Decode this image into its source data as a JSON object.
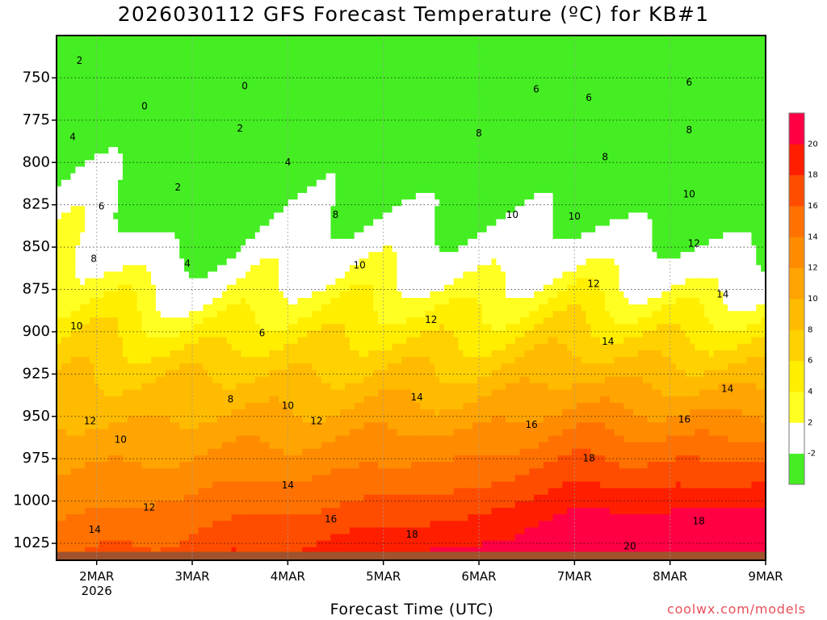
{
  "title": "2026030112 GFS Forecast Temperature (ºC) for KB#1",
  "credit": "coolwx.com/models",
  "colors": {
    "terrain": "#a0522d",
    "contour_line": "#000000",
    "zero_line": "#c0186c"
  },
  "chart_data": {
    "type": "heatmap",
    "title": "2026030112 GFS Forecast Temperature (ºC) for KB#1",
    "xlabel": "Forecast Time (UTC)",
    "ylabel": "",
    "x_units": "days since 2026-03-01 00Z",
    "xlim": [
      1.58,
      9.0
    ],
    "ylim": [
      1035,
      725
    ],
    "y_ticks": [
      750,
      775,
      800,
      825,
      850,
      875,
      900,
      925,
      950,
      975,
      1000,
      1025
    ],
    "y_tick_labels": [
      "750",
      "775",
      "800",
      "825",
      "850",
      "875",
      "900",
      "925",
      "950",
      "975",
      "1000",
      "1025"
    ],
    "x_ticks": [
      2,
      3,
      4,
      5,
      6,
      7,
      8,
      9
    ],
    "x_tick_labels": [
      "2MAR",
      "3MAR",
      "4MAR",
      "5MAR",
      "6MAR",
      "7MAR",
      "8MAR",
      "9MAR"
    ],
    "x_sublabel": "2026",
    "grid": true,
    "surface_pressure_hpa": 1030,
    "colorbar": {
      "levels": [
        -4,
        -2,
        2,
        4,
        6,
        8,
        10,
        12,
        14,
        16,
        18,
        20,
        22
      ],
      "tick_labels": [
        "-2",
        "2",
        "4",
        "6",
        "8",
        "10",
        "12",
        "14",
        "16",
        "18",
        "20"
      ],
      "colors": [
        "#44ee22",
        "#ffffff",
        "#ffff22",
        "#ffee00",
        "#ffd100",
        "#ffbb00",
        "#ffa400",
        "#ff8c00",
        "#ff7100",
        "#ff4d00",
        "#ff1e00",
        "#ff0044"
      ]
    },
    "contour_labels": [
      {
        "x": 1.82,
        "y": 740,
        "value": "2"
      },
      {
        "x": 2.5,
        "y": 767,
        "value": "0"
      },
      {
        "x": 3.55,
        "y": 755,
        "value": "0"
      },
      {
        "x": 3.5,
        "y": 780,
        "value": "2"
      },
      {
        "x": 1.75,
        "y": 785,
        "value": "4"
      },
      {
        "x": 2.85,
        "y": 815,
        "value": "2"
      },
      {
        "x": 4.0,
        "y": 800,
        "value": "4"
      },
      {
        "x": 2.05,
        "y": 826,
        "value": "6"
      },
      {
        "x": 2.95,
        "y": 860,
        "value": "4"
      },
      {
        "x": 4.5,
        "y": 831,
        "value": "8"
      },
      {
        "x": 1.97,
        "y": 857,
        "value": "8"
      },
      {
        "x": 4.75,
        "y": 861,
        "value": "10"
      },
      {
        "x": 1.79,
        "y": 897,
        "value": "10"
      },
      {
        "x": 3.73,
        "y": 901,
        "value": "6"
      },
      {
        "x": 3.4,
        "y": 940,
        "value": "8"
      },
      {
        "x": 4.0,
        "y": 944,
        "value": "10"
      },
      {
        "x": 1.93,
        "y": 953,
        "value": "12"
      },
      {
        "x": 2.25,
        "y": 964,
        "value": "10"
      },
      {
        "x": 4.3,
        "y": 953,
        "value": "12"
      },
      {
        "x": 5.5,
        "y": 893,
        "value": "12"
      },
      {
        "x": 6.0,
        "y": 783,
        "value": "8"
      },
      {
        "x": 6.35,
        "y": 831,
        "value": "10"
      },
      {
        "x": 7.0,
        "y": 832,
        "value": "10"
      },
      {
        "x": 6.6,
        "y": 757,
        "value": "6"
      },
      {
        "x": 7.15,
        "y": 762,
        "value": "6"
      },
      {
        "x": 7.32,
        "y": 797,
        "value": "8"
      },
      {
        "x": 8.2,
        "y": 753,
        "value": "6"
      },
      {
        "x": 8.2,
        "y": 781,
        "value": "8"
      },
      {
        "x": 8.2,
        "y": 819,
        "value": "10"
      },
      {
        "x": 7.2,
        "y": 872,
        "value": "12"
      },
      {
        "x": 8.25,
        "y": 848,
        "value": "12"
      },
      {
        "x": 8.55,
        "y": 878,
        "value": "14"
      },
      {
        "x": 7.35,
        "y": 906,
        "value": "14"
      },
      {
        "x": 8.6,
        "y": 934,
        "value": "14"
      },
      {
        "x": 5.35,
        "y": 939,
        "value": "14"
      },
      {
        "x": 6.55,
        "y": 955,
        "value": "16"
      },
      {
        "x": 8.15,
        "y": 952,
        "value": "16"
      },
      {
        "x": 7.15,
        "y": 975,
        "value": "18"
      },
      {
        "x": 4.0,
        "y": 991,
        "value": "14"
      },
      {
        "x": 2.55,
        "y": 1004,
        "value": "12"
      },
      {
        "x": 1.98,
        "y": 1017,
        "value": "14"
      },
      {
        "x": 4.45,
        "y": 1011,
        "value": "16"
      },
      {
        "x": 5.3,
        "y": 1020,
        "value": "18"
      },
      {
        "x": 8.3,
        "y": 1012,
        "value": "18"
      },
      {
        "x": 7.58,
        "y": 1027,
        "value": "20"
      }
    ]
  }
}
